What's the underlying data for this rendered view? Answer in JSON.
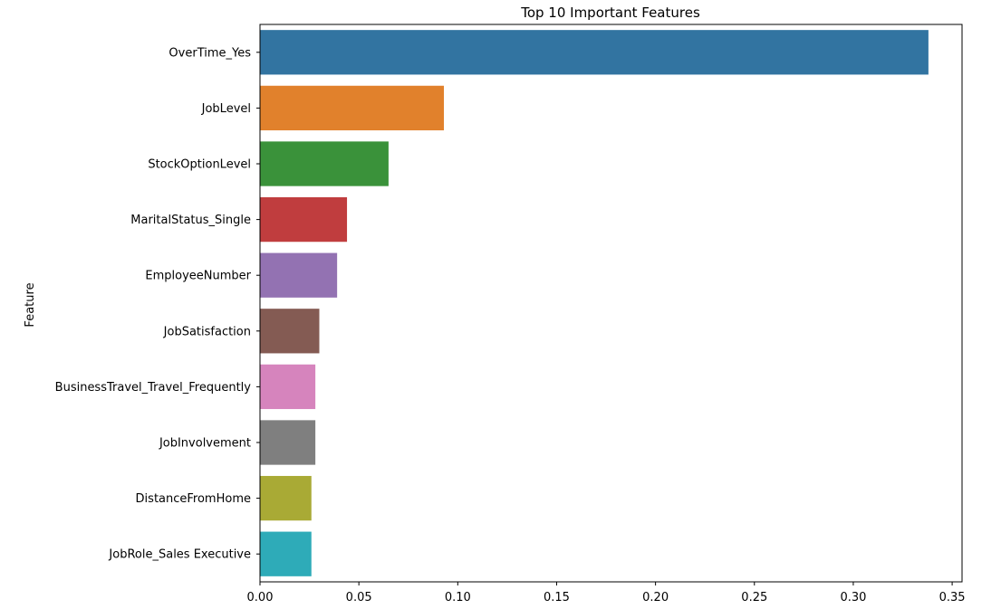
{
  "chart_data": {
    "type": "bar",
    "orientation": "horizontal",
    "title": "Top 10 Important Features",
    "xlabel": "",
    "ylabel": "Feature",
    "xlim": [
      0,
      0.355
    ],
    "xticks": [
      0.0,
      0.05,
      0.1,
      0.15,
      0.2,
      0.25,
      0.3,
      0.35
    ],
    "xtick_labels": [
      "0.00",
      "0.05",
      "0.10",
      "0.15",
      "0.20",
      "0.25",
      "0.30",
      "0.35"
    ],
    "categories": [
      "OverTime_Yes",
      "JobLevel",
      "StockOptionLevel",
      "MaritalStatus_Single",
      "EmployeeNumber",
      "JobSatisfaction",
      "BusinessTravel_Travel_Frequently",
      "JobInvolvement",
      "DistanceFromHome",
      "JobRole_Sales Executive"
    ],
    "values": [
      0.338,
      0.093,
      0.065,
      0.044,
      0.039,
      0.03,
      0.028,
      0.028,
      0.026,
      0.026
    ],
    "colors": [
      "#3274a1",
      "#e1812c",
      "#3a923a",
      "#c03d3e",
      "#9372b2",
      "#845b53",
      "#d684bd",
      "#7f7f7f",
      "#a9aa35",
      "#2eabb8"
    ],
    "grid": false,
    "legend": "none"
  }
}
